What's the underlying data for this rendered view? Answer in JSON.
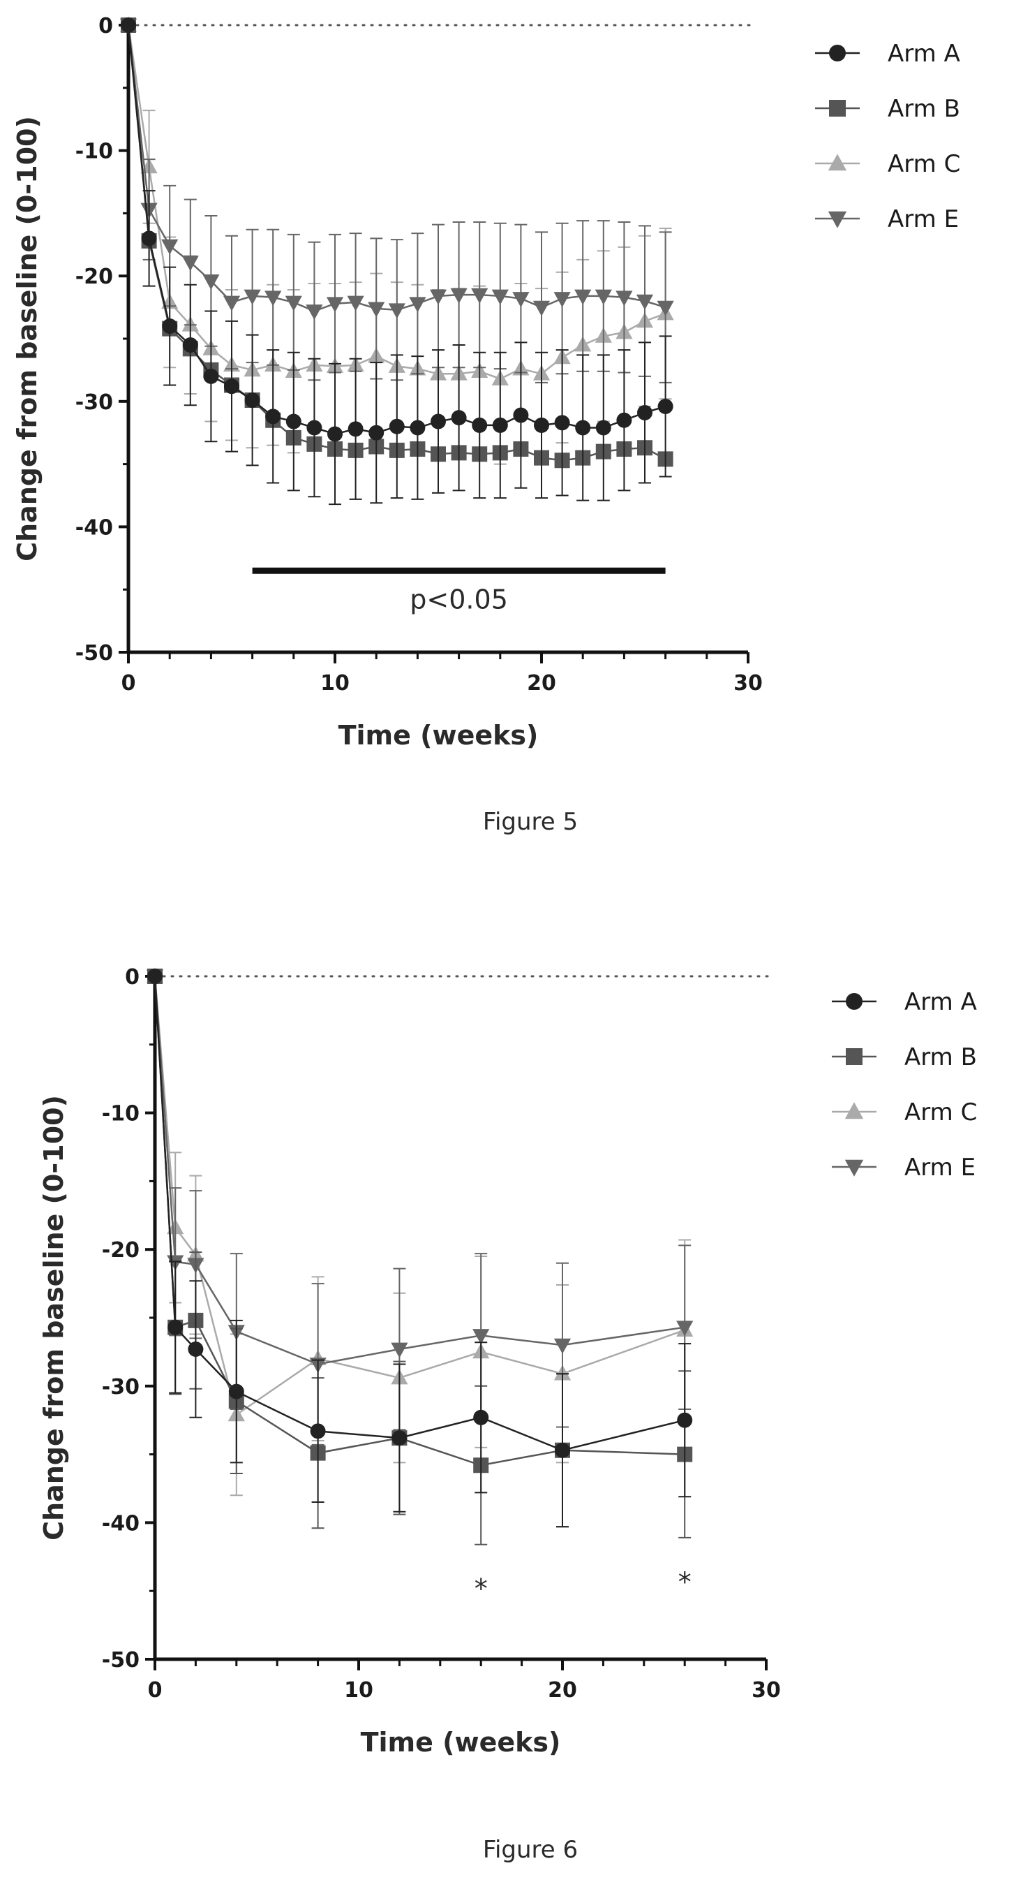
{
  "chart_data": [
    {
      "type": "line",
      "caption": "Figure 5",
      "xlabel": "Time (weeks)",
      "ylabel": "Change from baseline (0-100)",
      "xlim": [
        0,
        30
      ],
      "ylim": [
        -50,
        0
      ],
      "xticks": [
        0,
        10,
        20,
        30
      ],
      "yticks": [
        0,
        -10,
        -20,
        -30,
        -40,
        -50
      ],
      "reference_line_y": 0,
      "legend_position": "top-right",
      "error_bars": true,
      "annotation": {
        "text": "p<0.05",
        "x_from": 6,
        "x_to": 26,
        "y": -43.5
      },
      "x": [
        0,
        1,
        2,
        3,
        4,
        5,
        6,
        7,
        8,
        9,
        10,
        11,
        12,
        13,
        14,
        15,
        16,
        17,
        18,
        19,
        20,
        21,
        22,
        23,
        24,
        25,
        26
      ],
      "series": [
        {
          "name": "Arm A",
          "marker": "circle",
          "color": "#222222",
          "values": [
            0,
            -17,
            -24,
            -25.5,
            -28,
            -28.8,
            -29.9,
            -31.2,
            -31.6,
            -32.1,
            -32.6,
            -32.2,
            -32.5,
            -32.0,
            -32.1,
            -31.6,
            -31.3,
            -31.9,
            -31.9,
            -31.1,
            -31.9,
            -31.7,
            -32.1,
            -32.1,
            -31.5,
            -30.9,
            -30.4
          ],
          "error": [
            0,
            3.8,
            4.7,
            4.8,
            5.2,
            5.2,
            5.2,
            5.3,
            5.5,
            5.5,
            5.6,
            5.6,
            5.6,
            5.7,
            5.7,
            5.7,
            5.8,
            5.8,
            5.8,
            5.8,
            5.8,
            5.8,
            5.8,
            5.8,
            5.6,
            5.6,
            5.6
          ]
        },
        {
          "name": "Arm B",
          "marker": "square",
          "color": "#555555",
          "values": [
            0,
            -17.2,
            -24.2,
            -25.8,
            -27.5,
            -28.7,
            -29.9,
            -31.5,
            -32.9,
            -33.4,
            -33.8,
            -33.9,
            -33.6,
            -33.9,
            -33.8,
            -34.2,
            -34.1,
            -34.2,
            -34.1,
            -33.8,
            -34.5,
            -34.7,
            -34.5,
            -34.0,
            -33.8,
            -33.7,
            -34.6
          ]
        },
        {
          "name": "Arm C",
          "marker": "triangle-up",
          "color": "#aaaaaa",
          "values": [
            0,
            -11.3,
            -22.1,
            -23.9,
            -25.8,
            -27.1,
            -27.5,
            -27.1,
            -27.6,
            -27.1,
            -27.2,
            -27.1,
            -26.4,
            -27.2,
            -27.4,
            -27.8,
            -27.8,
            -27.6,
            -28.2,
            -27.4,
            -27.8,
            -26.5,
            -25.5,
            -24.8,
            -24.5,
            -23.6,
            -23.0
          ],
          "error": [
            0,
            4.5,
            5.2,
            5.5,
            5.8,
            6.0,
            6.2,
            6.4,
            6.5,
            6.5,
            6.6,
            6.6,
            6.6,
            6.7,
            6.7,
            6.7,
            6.8,
            6.8,
            6.8,
            6.8,
            6.8,
            6.8,
            6.8,
            6.8,
            6.8,
            6.8,
            6.8
          ]
        },
        {
          "name": "Arm E",
          "marker": "triangle-down",
          "color": "#666666",
          "values": [
            0,
            -14.7,
            -17.6,
            -18.9,
            -20.4,
            -22.1,
            -21.6,
            -21.7,
            -22.1,
            -22.8,
            -22.2,
            -22.1,
            -22.6,
            -22.7,
            -22.2,
            -21.6,
            -21.5,
            -21.5,
            -21.6,
            -21.8,
            -22.5,
            -21.8,
            -21.6,
            -21.6,
            -21.7,
            -22.0,
            -22.5
          ],
          "error": [
            0,
            4.0,
            4.8,
            5.0,
            5.2,
            5.3,
            5.3,
            5.4,
            5.4,
            5.5,
            5.5,
            5.5,
            5.6,
            5.6,
            5.6,
            5.7,
            5.8,
            5.8,
            5.8,
            5.9,
            6.0,
            6.0,
            6.0,
            6.0,
            6.0,
            6.0,
            6.0
          ]
        }
      ]
    },
    {
      "type": "line",
      "caption": "Figure 6",
      "xlabel": "Time (weeks)",
      "ylabel": "Change from baseline (0-100)",
      "xlim": [
        0,
        30
      ],
      "ylim": [
        -50,
        0
      ],
      "xticks": [
        0,
        10,
        20,
        30
      ],
      "yticks": [
        0,
        -10,
        -20,
        -30,
        -40,
        -50
      ],
      "reference_line_y": 0,
      "legend_position": "top-right",
      "error_bars": true,
      "significance_markers": [
        {
          "x": 16,
          "y": -45,
          "text": "*"
        },
        {
          "x": 26,
          "y": -44.5,
          "text": "*"
        }
      ],
      "x": [
        0,
        1,
        2,
        4,
        8,
        12,
        16,
        20,
        26
      ],
      "series": [
        {
          "name": "Arm A",
          "marker": "circle",
          "color": "#222222",
          "values": [
            0,
            -25.7,
            -27.3,
            -30.4,
            -33.3,
            -33.8,
            -32.3,
            -34.7,
            -32.5
          ],
          "error": [
            0,
            4.8,
            5.0,
            5.2,
            5.2,
            5.4,
            5.5,
            5.6,
            5.6
          ]
        },
        {
          "name": "Arm B",
          "marker": "square",
          "color": "#555555",
          "values": [
            0,
            -25.7,
            -25.2,
            -31.1,
            -34.9,
            -33.8,
            -35.8,
            -34.7,
            -35.0
          ],
          "error": [
            0,
            4.9,
            5.0,
            5.3,
            5.5,
            5.6,
            5.8,
            5.6,
            6.1
          ]
        },
        {
          "name": "Arm C",
          "marker": "triangle-up",
          "color": "#aaaaaa",
          "values": [
            0,
            -18.4,
            -20.4,
            -32.1,
            -28.0,
            -29.4,
            -27.5,
            -29.1,
            -25.9
          ],
          "error": [
            0,
            5.5,
            5.8,
            5.9,
            6.0,
            6.2,
            7.0,
            6.5,
            6.6
          ]
        },
        {
          "name": "Arm E",
          "marker": "triangle-down",
          "color": "#666666",
          "values": [
            0,
            -20.9,
            -21.1,
            -26.0,
            -28.4,
            -27.3,
            -26.3,
            -27.0,
            -25.7
          ],
          "error": [
            0,
            5.4,
            5.4,
            5.7,
            5.9,
            5.9,
            6.0,
            6.0,
            6.0
          ]
        }
      ]
    }
  ]
}
